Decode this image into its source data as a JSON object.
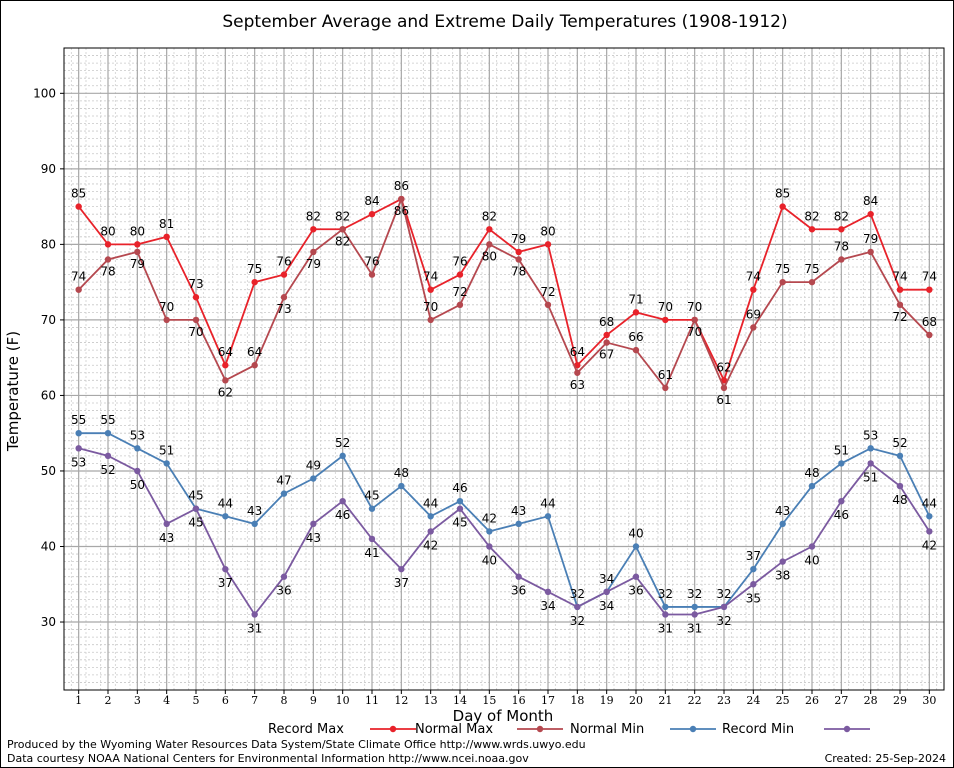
{
  "footer": {
    "produced_by": "Produced by the Wyoming Water Resources Data System/State Climate Office http://www.wrds.uwyo.edu",
    "data_courtesy": "Data courtesy NOAA National Centers for Environmental Information http://www.ncei.noaa.gov",
    "created": "Created:  25-Sep-2024"
  },
  "chart_data": {
    "type": "line",
    "title": "September Average and Extreme Daily Temperatures (1908-1912)",
    "xlabel": "Day of Month",
    "ylabel": "Temperature (F)",
    "x": [
      1,
      2,
      3,
      4,
      5,
      6,
      7,
      8,
      9,
      10,
      11,
      12,
      13,
      14,
      15,
      16,
      17,
      18,
      19,
      20,
      21,
      22,
      23,
      24,
      25,
      26,
      27,
      28,
      29,
      30
    ],
    "xlim": [
      0.5,
      30.5
    ],
    "ylim": [
      21,
      106
    ],
    "yticks": [
      30,
      40,
      50,
      60,
      70,
      80,
      90,
      100
    ],
    "grid": true,
    "legend_position": "bottom",
    "series": [
      {
        "name": "Record Max",
        "color": "#e8222a",
        "values": [
          85,
          80,
          80,
          81,
          73,
          64,
          75,
          76,
          82,
          82,
          84,
          86,
          74,
          76,
          82,
          79,
          80,
          64,
          68,
          71,
          70,
          70,
          62,
          74,
          85,
          82,
          82,
          84,
          74,
          74
        ]
      },
      {
        "name": "Normal Max",
        "color": "#b5484f",
        "values": [
          74,
          78,
          79,
          70,
          70,
          62,
          64,
          73,
          79,
          82,
          76,
          86,
          70,
          72,
          80,
          78,
          72,
          63,
          67,
          66,
          61,
          70,
          61,
          69,
          75,
          75,
          78,
          79,
          72,
          68
        ]
      },
      {
        "name": "Normal Min",
        "color": "#4a7fb5",
        "values": [
          55,
          55,
          53,
          51,
          45,
          44,
          43,
          47,
          49,
          52,
          45,
          48,
          44,
          46,
          42,
          43,
          44,
          32,
          34,
          40,
          32,
          32,
          32,
          37,
          43,
          48,
          51,
          53,
          52,
          44
        ]
      },
      {
        "name": "Record Min",
        "color": "#7b5aa0",
        "values": [
          53,
          52,
          50,
          43,
          45,
          37,
          31,
          36,
          43,
          46,
          41,
          37,
          42,
          45,
          40,
          36,
          34,
          32,
          34,
          36,
          31,
          31,
          32,
          35,
          38,
          40,
          46,
          51,
          48,
          42
        ]
      }
    ]
  }
}
